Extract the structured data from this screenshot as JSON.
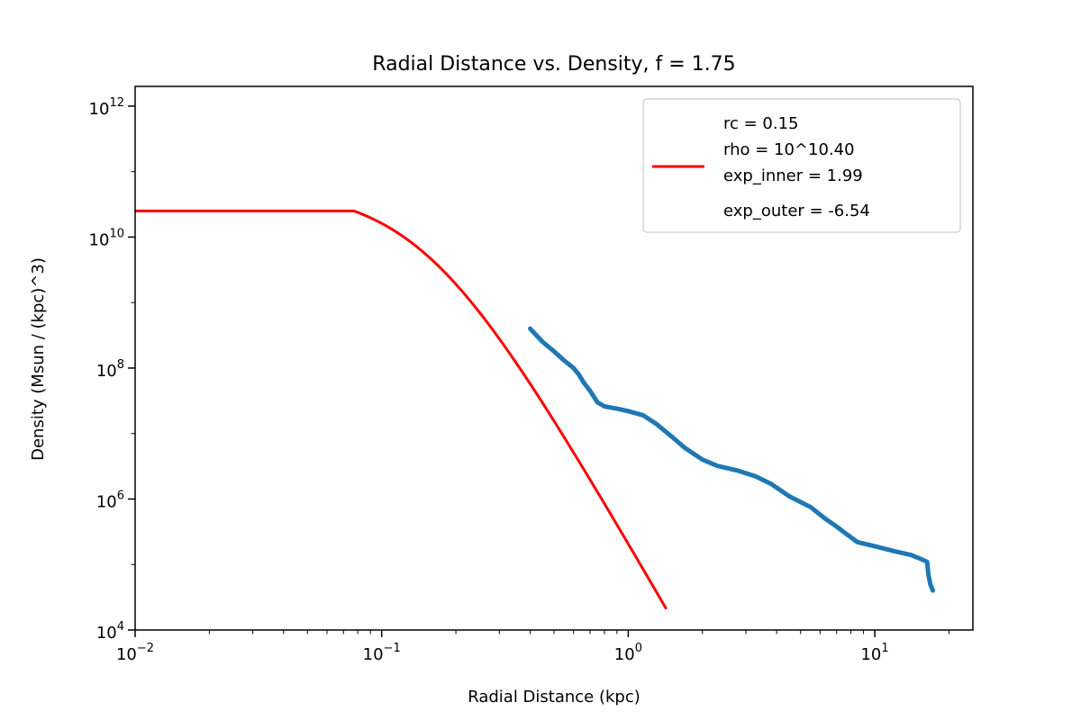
{
  "chart_data": {
    "type": "line",
    "title": "Radial Distance vs. Density, f = 1.75",
    "xlabel": "Radial Distance (kpc)",
    "ylabel": "Density (Msun / (kpc)^3)",
    "xscale": "log",
    "yscale": "log",
    "xlim": [
      0.01,
      25
    ],
    "ylim": [
      10000,
      2000000000000
    ],
    "x_ticks": [
      {
        "value": 0.01,
        "base": "10",
        "exp": "−2"
      },
      {
        "value": 0.1,
        "base": "10",
        "exp": "−1"
      },
      {
        "value": 1,
        "base": "10",
        "exp": "0"
      },
      {
        "value": 10,
        "base": "10",
        "exp": "1"
      }
    ],
    "y_ticks": [
      {
        "value": 10000,
        "base": "10",
        "exp": "4"
      },
      {
        "value": 1000000,
        "base": "10",
        "exp": "6"
      },
      {
        "value": 100000000,
        "base": "10",
        "exp": "8"
      },
      {
        "value": 10000000000,
        "base": "10",
        "exp": "10"
      },
      {
        "value": 1000000000000,
        "base": "10",
        "exp": "12"
      }
    ],
    "legend": {
      "placement": "top-right",
      "lines": [
        "rc = 0.15",
        "rho = 10^10.40",
        "exp_inner = 1.99",
        "exp_outer = -6.54"
      ]
    },
    "series": [
      {
        "kind": "data",
        "color": "#1f77b4",
        "points": [
          [
            0.4,
            400000000
          ],
          [
            0.45,
            250000000
          ],
          [
            0.5,
            180000000
          ],
          [
            0.55,
            130000000
          ],
          [
            0.6,
            100000000
          ],
          [
            0.63,
            80000000
          ],
          [
            0.66,
            60000000
          ],
          [
            0.7,
            45000000
          ],
          [
            0.75,
            30000000
          ],
          [
            0.8,
            26000000
          ],
          [
            0.9,
            24000000
          ],
          [
            1.0,
            22000000
          ],
          [
            1.15,
            19000000
          ],
          [
            1.3,
            14000000
          ],
          [
            1.5,
            9000000
          ],
          [
            1.7,
            6000000
          ],
          [
            2.0,
            4000000
          ],
          [
            2.3,
            3200000
          ],
          [
            2.8,
            2700000
          ],
          [
            3.3,
            2200000
          ],
          [
            3.8,
            1700000
          ],
          [
            4.5,
            1100000
          ],
          [
            5.5,
            750000
          ],
          [
            6.3,
            500000
          ],
          [
            7.0,
            380000
          ],
          [
            7.6,
            300000
          ],
          [
            8.5,
            220000
          ],
          [
            10,
            190000
          ],
          [
            12,
            160000
          ],
          [
            14,
            140000
          ],
          [
            15.5,
            120000
          ],
          [
            16.3,
            110000
          ],
          [
            16.5,
            70000
          ],
          [
            16.8,
            50000
          ],
          [
            17.2,
            40000
          ]
        ]
      },
      {
        "kind": "fit",
        "color": "#ff0000",
        "rc": 0.15,
        "log_rho": 10.4,
        "exp_inner": 1.99,
        "exp_outer": -6.54,
        "x_start": 0.01,
        "x_end": 1.42,
        "flat_until": 0.077
      }
    ],
    "grid": false
  }
}
